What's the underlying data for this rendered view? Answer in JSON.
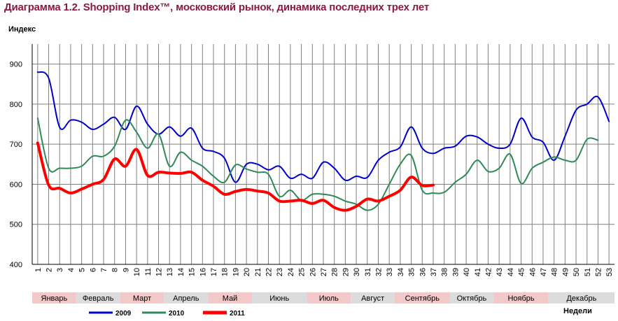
{
  "header": {
    "title": "Диаграмма 1.2. Shopping Index™, московский рынок, динамика последних трех лет"
  },
  "chart_data": {
    "type": "line",
    "title": "Диаграмма 1.2. Shopping Index™, московский рынок, динамика последних трех лет",
    "ylabel": "Индекс",
    "xlabel": "Недели",
    "ylim": [
      400,
      950
    ],
    "yticks": [
      400,
      500,
      600,
      700,
      800,
      900
    ],
    "xlim": [
      0.5,
      53.5
    ],
    "x": [
      1,
      2,
      3,
      4,
      5,
      6,
      7,
      8,
      9,
      10,
      11,
      12,
      13,
      14,
      15,
      16,
      17,
      18,
      19,
      20,
      21,
      22,
      23,
      24,
      25,
      26,
      27,
      28,
      29,
      30,
      31,
      32,
      33,
      34,
      35,
      36,
      37,
      38,
      39,
      40,
      41,
      42,
      43,
      44,
      45,
      46,
      47,
      48,
      49,
      50,
      51,
      52,
      53
    ],
    "grid": true,
    "legend_position": "bottom-left",
    "months": [
      {
        "name": "Январь",
        "start": 1,
        "end": 4,
        "color": "#f2c8c8"
      },
      {
        "name": "Февраль",
        "start": 5,
        "end": 8,
        "color": "#dcdcdc"
      },
      {
        "name": "Март",
        "start": 9,
        "end": 12,
        "color": "#f2c8c8"
      },
      {
        "name": "Апрель",
        "start": 13,
        "end": 16,
        "color": "#dcdcdc"
      },
      {
        "name": "Май",
        "start": 17,
        "end": 20,
        "color": "#f2c8c8"
      },
      {
        "name": "Июнь",
        "start": 21,
        "end": 25,
        "color": "#dcdcdc"
      },
      {
        "name": "Июль",
        "start": 26,
        "end": 29,
        "color": "#f2c8c8"
      },
      {
        "name": "Август",
        "start": 30,
        "end": 33,
        "color": "#dcdcdc"
      },
      {
        "name": "Сентябрь",
        "start": 34,
        "end": 38,
        "color": "#f2c8c8"
      },
      {
        "name": "Октябрь",
        "start": 39,
        "end": 42,
        "color": "#dcdcdc"
      },
      {
        "name": "Ноябрь",
        "start": 43,
        "end": 47,
        "color": "#f2c8c8"
      },
      {
        "name": "Декабрь",
        "start": 48,
        "end": 53,
        "color": "#dcdcdc"
      }
    ],
    "series": [
      {
        "name": "2009",
        "color": "#0000cc",
        "width": 2,
        "values": [
          880,
          865,
          742,
          760,
          755,
          737,
          750,
          767,
          737,
          795,
          750,
          725,
          743,
          720,
          740,
          690,
          682,
          665,
          605,
          650,
          650,
          636,
          645,
          615,
          625,
          615,
          655,
          640,
          610,
          620,
          617,
          660,
          680,
          693,
          743,
          690,
          677,
          690,
          695,
          720,
          718,
          700,
          690,
          700,
          765,
          718,
          705,
          660,
          720,
          785,
          800,
          818,
          757
        ]
      },
      {
        "name": "2010",
        "color": "#2e8b57",
        "width": 2,
        "values": [
          765,
          640,
          640,
          640,
          645,
          670,
          670,
          695,
          760,
          730,
          690,
          725,
          645,
          680,
          660,
          645,
          620,
          605,
          648,
          638,
          630,
          625,
          570,
          585,
          560,
          575,
          575,
          570,
          558,
          550,
          535,
          550,
          600,
          650,
          672,
          585,
          578,
          580,
          605,
          625,
          660,
          632,
          640,
          675,
          602,
          640,
          655,
          668,
          660,
          660,
          712,
          710,
          null
        ]
      },
      {
        "name": "2011",
        "color": "#ff0000",
        "width": 4,
        "values": [
          703,
          598,
          590,
          578,
          588,
          600,
          612,
          663,
          645,
          687,
          622,
          630,
          628,
          627,
          630,
          610,
          595,
          575,
          582,
          587,
          583,
          578,
          558,
          558,
          560,
          552,
          560,
          542,
          535,
          545,
          563,
          558,
          570,
          585,
          618,
          597,
          598,
          null,
          null,
          null,
          null,
          null,
          null,
          null,
          null,
          null,
          null,
          null,
          null,
          null,
          null,
          null,
          null
        ]
      }
    ]
  }
}
